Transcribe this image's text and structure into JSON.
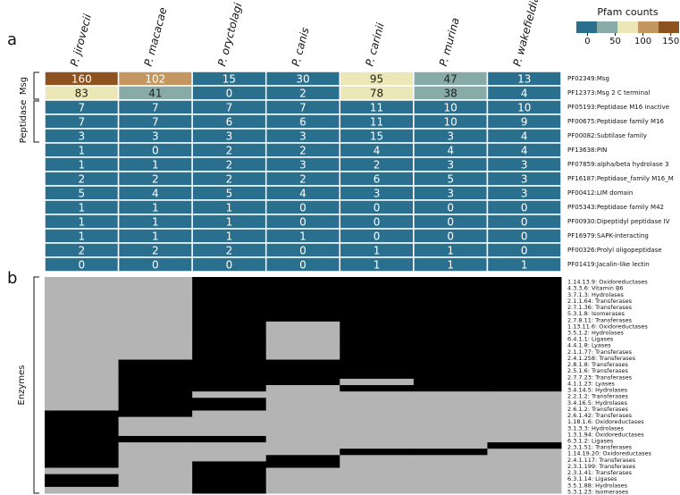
{
  "chart_data": [
    {
      "type": "heatmap",
      "panel_label": "a",
      "columns": [
        "P. jirovecii",
        "P. macacae",
        "P. oryctolagi",
        "P. canis",
        "P. carinii",
        "P. murina",
        "P. wakefieldiae"
      ],
      "rows": [
        "PF02349:Msg",
        "PF12373:Msg 2 C terminal",
        "PF05193:Peptidase M16 inactive",
        "PF00675:Peptidase family M16",
        "PF00082:Subtilase family",
        "PF13638:PIN",
        "PF07859:alpha/beta hydrolase  3",
        "PF16187:Peptidase_family M16_M",
        "PF00412:LIM domain",
        "PF05343:Peptidase family M42",
        "PF00930:Dipeptidyl peptidase IV",
        "PF16979:SAPK-interacting",
        "PF00326:Prolyl oligopeptidase",
        "PF01419:Jacalin-like lectin"
      ],
      "values": [
        [
          160,
          102,
          15,
          30,
          95,
          47,
          13
        ],
        [
          83,
          41,
          0,
          2,
          78,
          38,
          4
        ],
        [
          7,
          7,
          7,
          7,
          11,
          10,
          10
        ],
        [
          7,
          7,
          6,
          6,
          11,
          10,
          9
        ],
        [
          3,
          3,
          3,
          3,
          15,
          3,
          4
        ],
        [
          1,
          0,
          2,
          2,
          4,
          4,
          4
        ],
        [
          1,
          1,
          2,
          3,
          2,
          3,
          3
        ],
        [
          2,
          2,
          2,
          2,
          6,
          5,
          3
        ],
        [
          5,
          4,
          5,
          4,
          3,
          3,
          3
        ],
        [
          1,
          1,
          1,
          0,
          0,
          0,
          0
        ],
        [
          1,
          1,
          1,
          0,
          0,
          0,
          0
        ],
        [
          1,
          1,
          1,
          1,
          0,
          0,
          0
        ],
        [
          2,
          2,
          2,
          0,
          1,
          1,
          0
        ],
        [
          0,
          0,
          0,
          0,
          1,
          1,
          1
        ]
      ],
      "groups": [
        {
          "name": "Msg",
          "rows": [
            0,
            1
          ]
        },
        {
          "name": "Peptidase",
          "rows": [
            2,
            4
          ]
        }
      ],
      "color_breaks": [
        35,
        60,
        100,
        125
      ],
      "colors": [
        "#2b6f8e",
        "#88aba7",
        "#ece7b6",
        "#c3975f",
        "#8e5220"
      ],
      "label_colors": [
        "#ffffff",
        "#222222",
        "#222222",
        "#ffffff",
        "#ffffff"
      ],
      "colorbar": {
        "title": "Pfam counts",
        "lim": [
          -20,
          165
        ],
        "ticks": [
          0,
          50,
          100,
          150
        ]
      }
    },
    {
      "type": "binary_heatmap",
      "panel_label": "b",
      "y_label": "Enzymes",
      "rows": [
        "1.14.13.9: Oxidoreductases",
        "4.3.3.6: Vitamin B6",
        "3.7.1.3: Hydrolases",
        "2.1.1.64: Transferases",
        "2.7.1.36: Transferases",
        "5.3.1.8: Isomerases",
        "2.7.8.11: Transferases",
        "1.13.11.6: Oxidoreductases",
        "3.5.1.2: Hydrolases",
        "6.4.1.1: Ligases",
        "4.4.1.8: Lyases",
        "2.1.1.77: Transferases",
        "2.4.1.258: Transferases",
        "2.8.1.8: Transferases",
        "2.5.1.6: Transferases",
        "2.7.7.23: Transferases",
        "4.1.1.23: Lyases",
        "3.4.14.5: Hydrolases",
        "2.2.1.2: Transferases",
        "3.4.16.5: Hydrolases",
        "2.6.1.2: Transferases",
        "2.6.1.42: Transferases",
        "1.18.1.6: Oxidoreductases",
        "3.1.3.3: Hydrolases",
        "1.3.1.94: Oxidoreductases",
        "6.3.1.2: Ligases",
        "2.3.1.51: Transferases",
        "1.14.19.20: Oxidoreductases",
        "2.4.1.117: Transferases",
        "2.3.1.199: Transferases",
        "2.3.1.41: Transferases",
        "6.3.1.14: Ligases",
        "3.5.1.88: Hydrolases",
        "5.3.1.23: Isomerases"
      ],
      "values": [
        [
          0,
          0,
          1,
          1,
          1,
          1,
          1
        ],
        [
          0,
          0,
          1,
          1,
          1,
          1,
          1
        ],
        [
          0,
          0,
          1,
          1,
          1,
          1,
          1
        ],
        [
          0,
          0,
          1,
          1,
          1,
          1,
          1
        ],
        [
          0,
          0,
          1,
          1,
          1,
          1,
          1
        ],
        [
          0,
          0,
          1,
          1,
          1,
          1,
          1
        ],
        [
          0,
          0,
          1,
          1,
          1,
          1,
          1
        ],
        [
          0,
          0,
          1,
          0,
          1,
          1,
          1
        ],
        [
          0,
          0,
          1,
          0,
          1,
          1,
          1
        ],
        [
          0,
          0,
          1,
          0,
          1,
          1,
          1
        ],
        [
          0,
          0,
          1,
          0,
          1,
          1,
          1
        ],
        [
          0,
          0,
          1,
          0,
          1,
          1,
          1
        ],
        [
          0,
          0,
          1,
          0,
          1,
          1,
          1
        ],
        [
          0,
          1,
          1,
          1,
          1,
          1,
          1
        ],
        [
          0,
          1,
          1,
          1,
          1,
          1,
          1
        ],
        [
          0,
          1,
          1,
          1,
          1,
          1,
          1
        ],
        [
          0,
          1,
          1,
          1,
          0,
          1,
          1
        ],
        [
          0,
          1,
          1,
          0,
          1,
          1,
          1
        ],
        [
          0,
          1,
          0,
          0,
          0,
          0,
          0
        ],
        [
          0,
          1,
          1,
          0,
          0,
          0,
          0
        ],
        [
          0,
          1,
          1,
          0,
          0,
          0,
          0
        ],
        [
          1,
          1,
          0,
          0,
          0,
          0,
          0
        ],
        [
          1,
          0,
          0,
          0,
          0,
          0,
          0
        ],
        [
          1,
          0,
          0,
          0,
          0,
          0,
          0
        ],
        [
          1,
          0,
          0,
          0,
          0,
          0,
          0
        ],
        [
          1,
          1,
          1,
          0,
          0,
          0,
          0
        ],
        [
          1,
          0,
          0,
          0,
          0,
          0,
          1
        ],
        [
          1,
          0,
          0,
          0,
          1,
          1,
          0
        ],
        [
          1,
          0,
          0,
          1,
          0,
          0,
          0
        ],
        [
          1,
          0,
          1,
          1,
          0,
          0,
          0
        ],
        [
          0,
          0,
          1,
          0,
          0,
          0,
          0
        ],
        [
          1,
          0,
          1,
          0,
          0,
          0,
          0
        ],
        [
          1,
          0,
          1,
          0,
          0,
          0,
          0
        ],
        [
          0,
          0,
          1,
          0,
          0,
          0,
          0
        ]
      ],
      "colors": [
        "#b4b4b4",
        "#000000"
      ]
    }
  ]
}
